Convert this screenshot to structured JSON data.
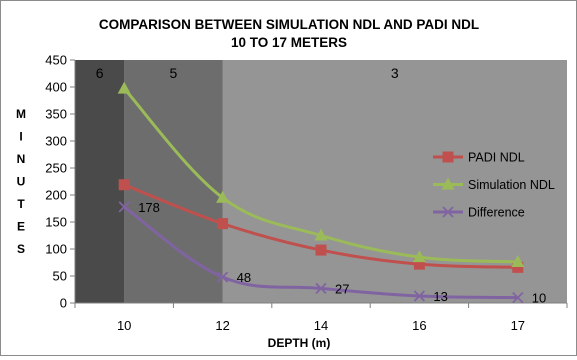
{
  "chart_data": {
    "type": "line",
    "title_line1": "COMPARISON BETWEEN SIMULATION NDL AND  PADI NDL",
    "title_line2": "10 TO 17 METERS",
    "xlabel": "DEPTH (m)",
    "ylabel_letters": [
      "M",
      "I",
      "N",
      "U",
      "T",
      "E",
      "S"
    ],
    "categories": [
      "10",
      "12",
      "14",
      "16",
      "17"
    ],
    "ylim": [
      0,
      450
    ],
    "yticks": [
      0,
      50,
      100,
      150,
      200,
      250,
      300,
      350,
      400,
      450
    ],
    "grid": false,
    "legend_position": "right",
    "bands": [
      {
        "label": "6",
        "from_index": 0,
        "to_index": 0,
        "color": "#4a4a4a"
      },
      {
        "label": "5",
        "from_index": 0,
        "to_index": 1,
        "color": "#6d6d6d"
      },
      {
        "label": "3",
        "from_index": 1,
        "to_index": 4,
        "color": "#959595"
      }
    ],
    "series": [
      {
        "name": "PADI NDL",
        "values": [
          219,
          147,
          98,
          72,
          66
        ],
        "color": "#c0504d",
        "marker": "square"
      },
      {
        "name": "Simulation NDL",
        "values": [
          397,
          195,
          125,
          85,
          76
        ],
        "color": "#9bbb59",
        "marker": "triangle"
      },
      {
        "name": "Difference",
        "values": [
          178,
          48,
          27,
          13,
          10
        ],
        "color": "#8064a2",
        "marker": "x"
      }
    ],
    "data_labels": {
      "series": "Difference",
      "labels": [
        "178",
        "48",
        "27",
        "13",
        "10"
      ]
    }
  }
}
